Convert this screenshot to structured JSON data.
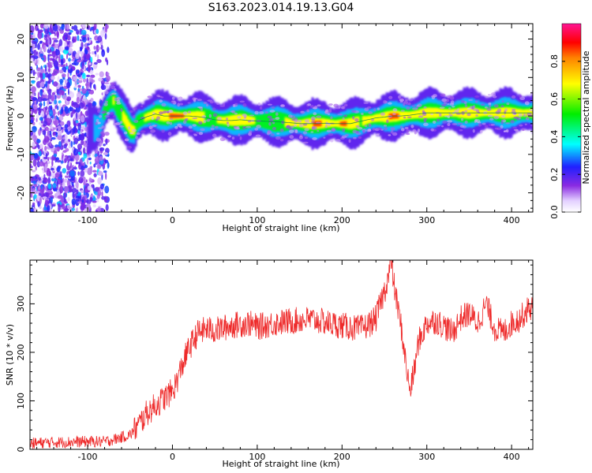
{
  "figure_title": "S163.2023.014.19.13.G04",
  "colors": {
    "snr_line": "#ee2a2a",
    "track": "#007a50",
    "frame": "#000000"
  },
  "chart_data": [
    {
      "type": "heatmap",
      "title": "S163.2023.014.19.13.G04",
      "xlabel": "Height of straight line (km)",
      "ylabel": "Frequency (Hz)",
      "xlim": [
        -168,
        425
      ],
      "ylim": [
        -25,
        24
      ],
      "xticks": [
        -100,
        0,
        100,
        200,
        300,
        400
      ],
      "yticks": [
        -20,
        -10,
        0,
        10,
        20
      ],
      "colorbar": {
        "label": "Normalized spectral amplitude",
        "range": [
          0,
          1
        ],
        "ticks": [
          0.0,
          0.2,
          0.4,
          0.6,
          0.8
        ],
        "colormap": "white-purple-blue-cyan-green-yellow-red-magenta"
      },
      "noise_region": {
        "x": [
          -168,
          -75
        ],
        "y": [
          -25,
          24
        ],
        "amplitude": 0.12
      },
      "ridge": {
        "x": [
          -100,
          -95,
          -88,
          -82,
          -78,
          -74,
          -70,
          -66,
          -62,
          -58,
          -54,
          -50,
          -46,
          -42,
          -38,
          -30,
          -20,
          -10,
          0,
          10,
          20,
          30,
          40,
          50,
          60,
          70,
          80,
          90,
          100,
          110,
          120,
          130,
          140,
          150,
          160,
          170,
          180,
          190,
          200,
          210,
          220,
          230,
          240,
          250,
          260,
          270,
          280,
          290,
          300,
          320,
          340,
          360,
          380,
          400,
          425
        ],
        "y": [
          -3.3,
          -3.3,
          -3.0,
          0.5,
          2.5,
          3.5,
          4.0,
          2.2,
          0.8,
          -0.5,
          -2.0,
          -3.5,
          -3.8,
          -1.5,
          -1.0,
          -0.2,
          0.5,
          0.0,
          0.0,
          0.0,
          0.0,
          -0.2,
          -0.5,
          -1.0,
          -1.2,
          -1.2,
          -1.0,
          -1.2,
          -1.3,
          -1.4,
          -1.5,
          -1.6,
          -1.8,
          -2.0,
          -2.0,
          -2.0,
          -1.9,
          -2.0,
          -2.0,
          -2.0,
          -1.5,
          -1.0,
          -0.5,
          -0.3,
          0.0,
          0.0,
          0.2,
          0.5,
          0.8,
          0.8,
          0.8,
          0.8,
          0.8,
          0.8,
          0.8
        ],
        "amplitude": [
          0.3,
          0.35,
          0.45,
          0.55,
          0.6,
          0.7,
          0.75,
          0.7,
          0.7,
          0.75,
          0.8,
          0.8,
          0.75,
          0.7,
          0.7,
          0.75,
          0.85,
          0.9,
          0.92,
          0.92,
          0.88,
          0.8,
          0.7,
          0.72,
          0.82,
          0.85,
          0.8,
          0.75,
          0.72,
          0.7,
          0.68,
          0.72,
          0.8,
          0.88,
          0.9,
          0.92,
          0.9,
          0.88,
          0.92,
          0.9,
          0.7,
          0.78,
          0.85,
          0.9,
          0.92,
          0.9,
          0.85,
          0.8,
          0.82,
          0.85,
          0.86,
          0.86,
          0.85,
          0.84,
          0.83
        ]
      }
    },
    {
      "type": "line",
      "xlabel": "Height of straight line (km)",
      "ylabel": "SNR (10 * v/v)",
      "xlim": [
        -168,
        425
      ],
      "ylim": [
        0,
        390
      ],
      "xticks": [
        -100,
        0,
        100,
        200,
        300,
        400
      ],
      "yticks": [
        0,
        100,
        200,
        300
      ],
      "x": [
        -168,
        -150,
        -125,
        -100,
        -80,
        -70,
        -60,
        -50,
        -40,
        -30,
        -20,
        -10,
        0,
        5,
        10,
        15,
        20,
        25,
        30,
        40,
        50,
        60,
        70,
        80,
        90,
        100,
        110,
        120,
        130,
        140,
        150,
        160,
        170,
        180,
        190,
        200,
        210,
        220,
        230,
        240,
        245,
        250,
        255,
        258,
        262,
        265,
        270,
        275,
        280,
        285,
        290,
        300,
        310,
        320,
        330,
        340,
        350,
        360,
        370,
        380,
        390,
        400,
        410,
        420,
        425
      ],
      "y": [
        12,
        14,
        15,
        16,
        16,
        20,
        25,
        30,
        50,
        75,
        90,
        105,
        120,
        140,
        165,
        190,
        210,
        225,
        240,
        248,
        245,
        250,
        255,
        258,
        260,
        252,
        256,
        260,
        262,
        264,
        266,
        268,
        266,
        262,
        258,
        255,
        252,
        248,
        255,
        270,
        300,
        325,
        360,
        385,
        330,
        300,
        250,
        180,
        120,
        160,
        220,
        260,
        265,
        255,
        240,
        270,
        280,
        260,
        300,
        250,
        240,
        260,
        270,
        290,
        295
      ],
      "noise_amplitude": 20
    }
  ]
}
